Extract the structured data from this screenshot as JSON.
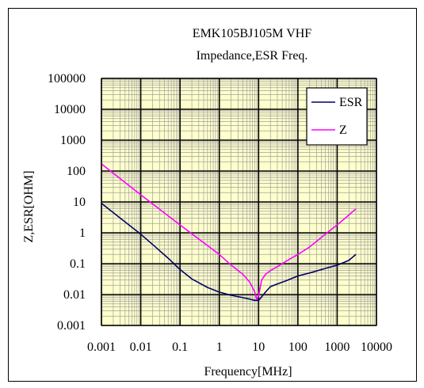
{
  "chart_data": {
    "type": "line",
    "title": "EMK105BJ105M VHF",
    "subtitle": "Impedance,ESR  Freq.",
    "xlabel": "Frequency[MHz]",
    "ylabel": "Z,ESR[OHM]",
    "x_scale": "log",
    "y_scale": "log",
    "xlim": [
      0.001,
      10000
    ],
    "ylim": [
      0.001,
      100000
    ],
    "x_ticks": [
      "0.001",
      "0.01",
      "0.1",
      "1",
      "10",
      "100",
      "1000",
      "10000"
    ],
    "y_ticks": [
      "0.001",
      "0.01",
      "0.1",
      "1",
      "10",
      "100",
      "1000",
      "10000",
      "100000"
    ],
    "grid": true,
    "legend_position": "top-right",
    "series": [
      {
        "name": "ESR",
        "color": "#000066",
        "x": [
          0.001,
          0.002,
          0.005,
          0.01,
          0.02,
          0.05,
          0.1,
          0.2,
          0.5,
          1,
          2,
          5,
          8,
          10,
          12,
          15,
          20,
          30,
          50,
          100,
          200,
          500,
          1000,
          1500,
          2000,
          3000
        ],
        "y": [
          9,
          4.5,
          1.8,
          0.9,
          0.42,
          0.15,
          0.065,
          0.032,
          0.017,
          0.012,
          0.0095,
          0.0075,
          0.0065,
          0.0065,
          0.0085,
          0.012,
          0.018,
          0.022,
          0.028,
          0.04,
          0.05,
          0.07,
          0.09,
          0.11,
          0.13,
          0.2
        ]
      },
      {
        "name": "Z",
        "color": "#ff00ff",
        "x": [
          0.001,
          0.01,
          0.1,
          1,
          2,
          4,
          6,
          8,
          9,
          10,
          12,
          15,
          20,
          30,
          50,
          100,
          200,
          500,
          1000,
          2000,
          3000
        ],
        "y": [
          170,
          17,
          1.8,
          0.2,
          0.09,
          0.045,
          0.025,
          0.012,
          0.007,
          0.009,
          0.03,
          0.045,
          0.06,
          0.08,
          0.12,
          0.2,
          0.35,
          0.9,
          1.8,
          3.8,
          6
        ]
      }
    ]
  }
}
